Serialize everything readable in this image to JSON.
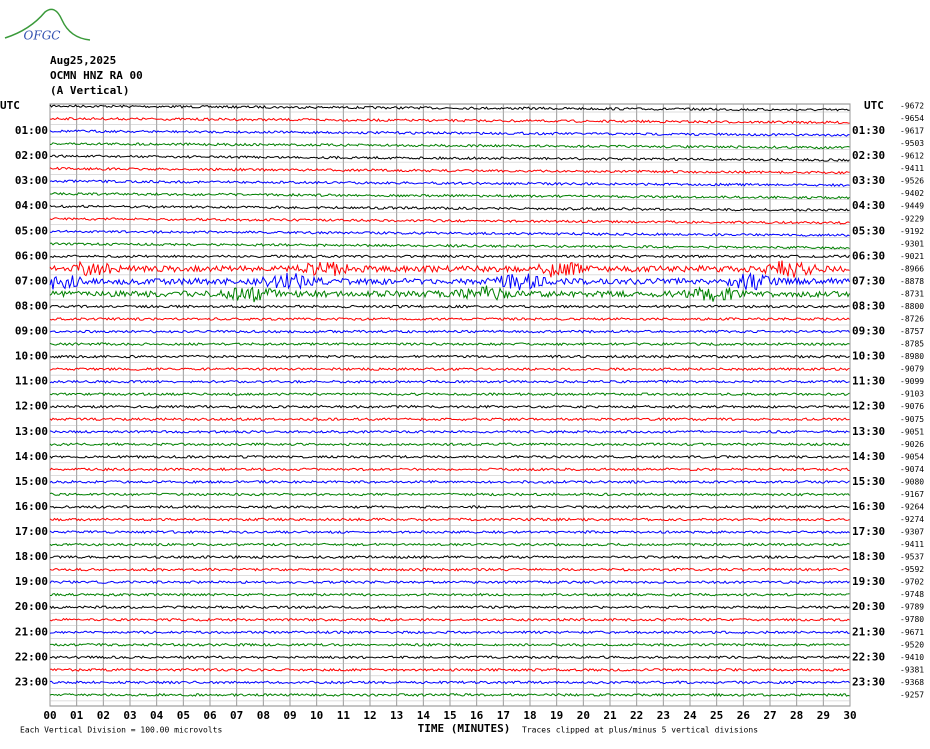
{
  "header": {
    "logo": "OFGC",
    "date": "Aug25,2025",
    "station": "OCMN HNZ RA 00",
    "component": "(A Vertical)"
  },
  "plot": {
    "left_title": "UTC",
    "right_title": "UTC",
    "left_labels": [
      "01:00",
      "02:00",
      "03:00",
      "04:00",
      "05:00",
      "06:00",
      "07:00",
      "08:00",
      "09:00",
      "10:00",
      "11:00",
      "12:00",
      "13:00",
      "14:00",
      "15:00",
      "16:00",
      "17:00",
      "18:00",
      "19:00",
      "20:00",
      "21:00",
      "22:00",
      "23:00"
    ],
    "right_labels": [
      "01:30",
      "02:30",
      "03:30",
      "04:30",
      "05:30",
      "06:30",
      "07:30",
      "08:30",
      "09:30",
      "10:30",
      "11:30",
      "12:30",
      "13:30",
      "14:30",
      "15:30",
      "16:30",
      "17:30",
      "18:30",
      "19:30",
      "20:30",
      "21:30",
      "22:30",
      "23:30"
    ],
    "offsets": [
      -9672,
      -9654,
      -9617,
      -9503,
      -9612,
      -9411,
      -9526,
      -9402,
      -9449,
      -9229,
      -9192,
      -9301,
      -9021,
      -8966,
      -8878,
      -8731,
      -8800,
      -8726,
      -8757,
      -8785,
      -8980,
      -9079,
      -9099,
      -9103,
      -9076,
      -9075,
      -9051,
      -9026,
      -9054,
      -9074,
      -9080,
      -9167,
      -9264,
      -9274,
      -9307,
      -9411,
      -9537,
      -9592,
      -9702,
      -9748,
      -9789,
      -9780,
      -9671,
      -9520,
      -9410,
      -9381,
      -9368,
      -9257
    ],
    "x_ticks": [
      "00",
      "01",
      "02",
      "03",
      "04",
      "05",
      "06",
      "07",
      "08",
      "09",
      "10",
      "11",
      "12",
      "13",
      "14",
      "15",
      "16",
      "17",
      "18",
      "19",
      "20",
      "21",
      "22",
      "23",
      "24",
      "25",
      "26",
      "27",
      "28",
      "29",
      "30"
    ],
    "x_label": "TIME (MINUTES)",
    "trace_colors": [
      "#000000",
      "#ff0000",
      "#0000ff",
      "#008000"
    ]
  },
  "footer": {
    "scale": "Each Vertical Division =  100.00 microvolts",
    "clip": "Traces clipped at plus/minus 5 vertical divisions"
  }
}
